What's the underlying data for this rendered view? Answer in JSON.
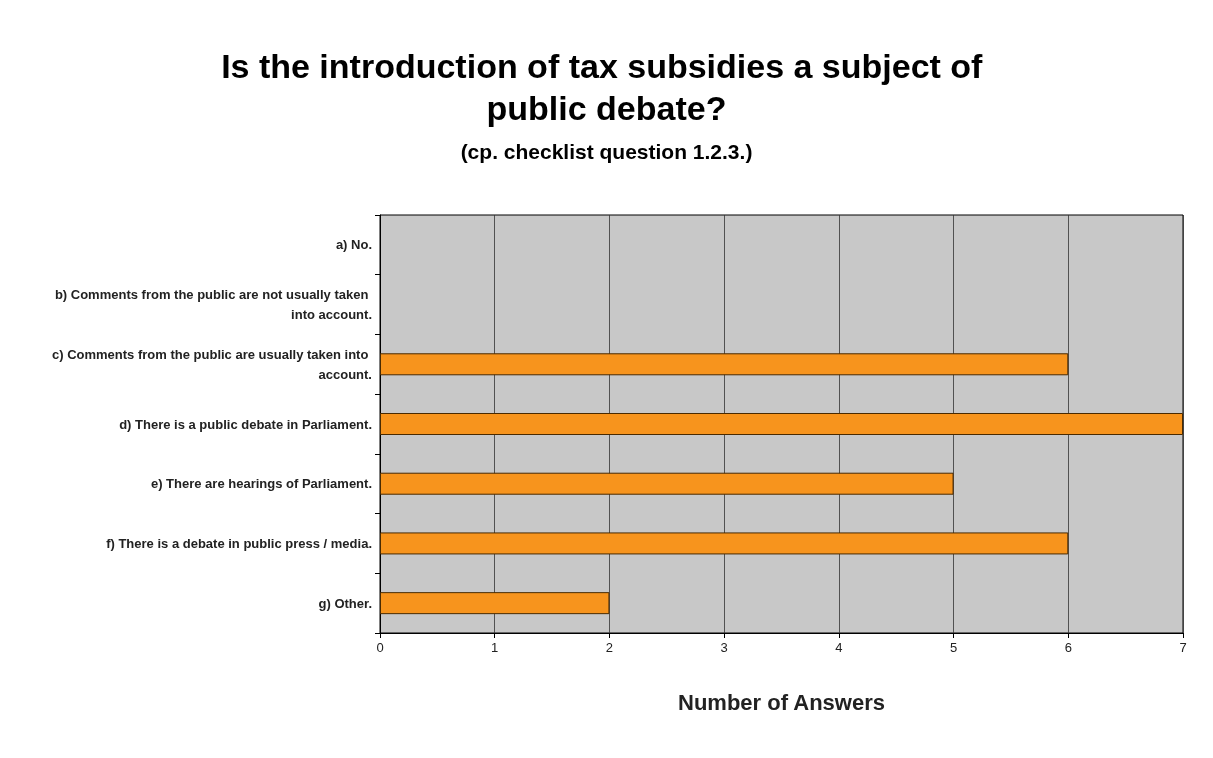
{
  "chart_data": {
    "type": "bar",
    "orientation": "horizontal",
    "title": "Is the introduction of tax subsidies a subject of public debate?",
    "subtitle": "(cp. checklist question 1.2.3.)",
    "xlabel": "Number of Answers",
    "categories": [
      "a) No.",
      "b) Comments from the public are not usually taken into account.",
      "c) Comments from the public are usually taken into account.",
      "d) There is a public debate in Parliament.",
      "e) There are hearings of Parliament.",
      "f) There is a debate in public press / media.",
      "g) Other."
    ],
    "values": [
      0,
      0,
      6,
      7,
      5,
      6,
      2
    ],
    "color": "#f7941d",
    "xlim": [
      0,
      7
    ],
    "xticks": [
      0,
      1,
      2,
      3,
      4,
      5,
      6,
      7
    ],
    "grid": "x"
  }
}
